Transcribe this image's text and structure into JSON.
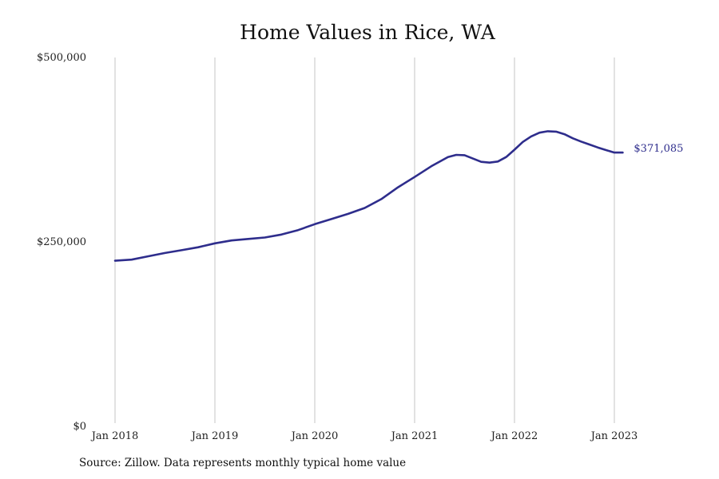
{
  "chart_data": {
    "type": "line",
    "title": "Home Values in Rice, WA",
    "xlabel": "",
    "ylabel": "",
    "x_tick_labels": [
      "Jan 2018",
      "Jan 2019",
      "Jan 2020",
      "Jan 2021",
      "Jan 2022",
      "Jan 2023"
    ],
    "y_tick_labels": [
      "$0",
      "$250,000",
      "$500,000"
    ],
    "y_ticks": [
      0,
      250000,
      500000
    ],
    "ylim": [
      0,
      500000
    ],
    "xlim": [
      "2018-01",
      "2023-10"
    ],
    "grid": "vertical lines at each January",
    "line_color": "#2e2d8c",
    "end_label": "$371,085",
    "series": [
      {
        "x": [
          "2018-01",
          "2018-03",
          "2018-05",
          "2018-07",
          "2018-09",
          "2018-11",
          "2019-01",
          "2019-03",
          "2019-05",
          "2019-07",
          "2019-09",
          "2019-11",
          "2020-01",
          "2020-03",
          "2020-05",
          "2020-07",
          "2020-09",
          "2020-11",
          "2021-01",
          "2021-03",
          "2021-05",
          "2021-06",
          "2021-07",
          "2021-08",
          "2021-09",
          "2021-10",
          "2021-11",
          "2021-12",
          "2022-01",
          "2022-02",
          "2022-03",
          "2022-04",
          "2022-05",
          "2022-06",
          "2022-07",
          "2022-08",
          "2022-09",
          "2022-10",
          "2022-11",
          "2022-12",
          "2023-01",
          "2023-02"
        ],
        "values": [
          224500,
          226000,
          230500,
          235000,
          238700,
          242700,
          248000,
          252000,
          254000,
          256000,
          260000,
          266000,
          274000,
          281000,
          288000,
          296000,
          308000,
          324000,
          338000,
          352500,
          365000,
          368000,
          367500,
          363000,
          358500,
          357500,
          359000,
          365000,
          375000,
          385500,
          393000,
          398000,
          400000,
          399500,
          396000,
          390500,
          386000,
          382000,
          378000,
          374500,
          371085,
          371085
        ]
      }
    ]
  },
  "source_note": "Source: Zillow. Data represents monthly typical home value"
}
